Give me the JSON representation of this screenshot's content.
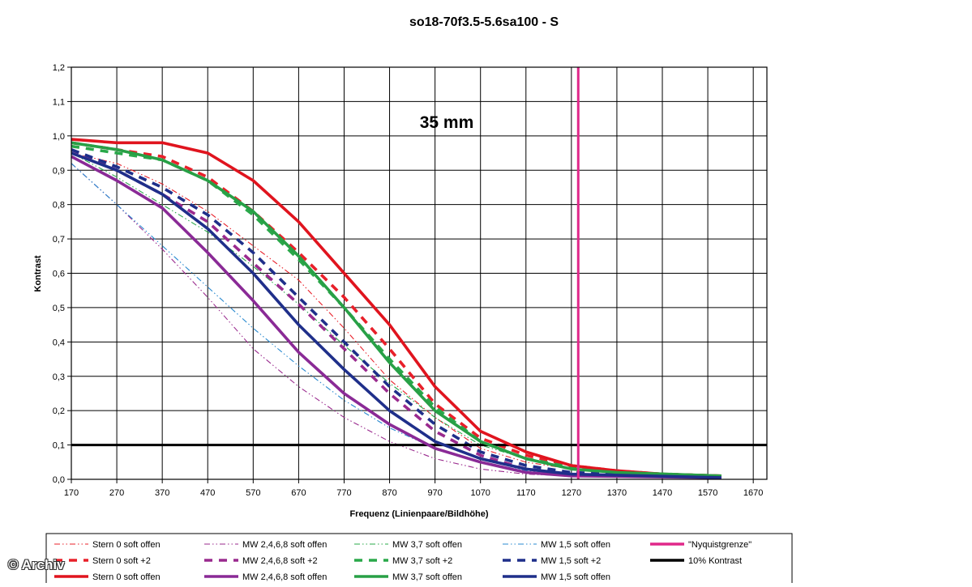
{
  "chart_data": {
    "type": "line",
    "title": "so18-70f3.5-5.6sa100 - S",
    "annotation": "35 mm",
    "xlabel": "Frequenz (Linienpaare/Bildhöhe)",
    "ylabel": "Kontrast",
    "xlim": [
      170,
      1700
    ],
    "ylim": [
      0,
      1.2
    ],
    "x_ticks": [
      "170",
      "270",
      "370",
      "470",
      "570",
      "670",
      "770",
      "870",
      "970",
      "1070",
      "1170",
      "1270",
      "1370",
      "1470",
      "1570",
      "1670"
    ],
    "y_ticks": [
      "0,0",
      "0,1",
      "0,2",
      "0,3",
      "0,4",
      "0,5",
      "0,6",
      "0,7",
      "0,8",
      "0,9",
      "1,0",
      "1,1",
      "1,2"
    ],
    "grid": true,
    "legend_position": "bottom",
    "series": [
      {
        "name": "Stern 0 soft offen",
        "color": "#e8202a",
        "style": "dashdot",
        "points": [
          [
            170,
            0.95
          ],
          [
            270,
            0.92
          ],
          [
            370,
            0.86
          ],
          [
            470,
            0.78
          ],
          [
            570,
            0.68
          ],
          [
            670,
            0.58
          ],
          [
            770,
            0.44
          ],
          [
            870,
            0.29
          ],
          [
            970,
            0.18
          ],
          [
            1070,
            0.09
          ],
          [
            1170,
            0.05
          ],
          [
            1270,
            0.03
          ],
          [
            1370,
            0.02
          ],
          [
            1470,
            0.015
          ],
          [
            1600,
            0.01
          ]
        ]
      },
      {
        "name": "MW 2,4,6,8 soft offen",
        "color": "#9a2a8e",
        "style": "dashdot",
        "points": [
          [
            170,
            0.92
          ],
          [
            270,
            0.8
          ],
          [
            370,
            0.67
          ],
          [
            470,
            0.53
          ],
          [
            570,
            0.38
          ],
          [
            670,
            0.27
          ],
          [
            770,
            0.18
          ],
          [
            870,
            0.11
          ],
          [
            970,
            0.06
          ],
          [
            1070,
            0.03
          ],
          [
            1170,
            0.015
          ],
          [
            1270,
            0.01
          ],
          [
            1600,
            0.005
          ]
        ]
      },
      {
        "name": "MW 3,7 soft offen",
        "color": "#2aa84a",
        "style": "dashdot",
        "points": [
          [
            170,
            0.95
          ],
          [
            270,
            0.88
          ],
          [
            370,
            0.8
          ],
          [
            470,
            0.72
          ],
          [
            570,
            0.62
          ],
          [
            670,
            0.51
          ],
          [
            770,
            0.39
          ],
          [
            870,
            0.28
          ],
          [
            970,
            0.18
          ],
          [
            1070,
            0.1
          ],
          [
            1170,
            0.06
          ],
          [
            1270,
            0.03
          ],
          [
            1370,
            0.02
          ],
          [
            1600,
            0.01
          ]
        ]
      },
      {
        "name": "MW 1,5 soft offen",
        "color": "#2a8ad0",
        "style": "dashdot",
        "points": [
          [
            170,
            0.92
          ],
          [
            270,
            0.8
          ],
          [
            370,
            0.68
          ],
          [
            470,
            0.56
          ],
          [
            570,
            0.44
          ],
          [
            670,
            0.33
          ],
          [
            770,
            0.23
          ],
          [
            870,
            0.15
          ],
          [
            970,
            0.09
          ],
          [
            1070,
            0.05
          ],
          [
            1170,
            0.025
          ],
          [
            1270,
            0.015
          ],
          [
            1600,
            0.005
          ]
        ]
      },
      {
        "name": "\"Nyquistgrenze\"",
        "color": "#e0288a",
        "style": "vline",
        "x": 1285
      },
      {
        "name": "Stern 0 soft +2",
        "color": "#e8202a",
        "style": "dashed",
        "points": [
          [
            170,
            0.98
          ],
          [
            270,
            0.96
          ],
          [
            370,
            0.94
          ],
          [
            470,
            0.88
          ],
          [
            570,
            0.78
          ],
          [
            670,
            0.66
          ],
          [
            770,
            0.53
          ],
          [
            870,
            0.38
          ],
          [
            970,
            0.22
          ],
          [
            1070,
            0.12
          ],
          [
            1170,
            0.07
          ],
          [
            1270,
            0.04
          ],
          [
            1370,
            0.025
          ],
          [
            1470,
            0.015
          ],
          [
            1600,
            0.01
          ]
        ]
      },
      {
        "name": "MW 2,4,6,8 soft +2",
        "color": "#9a2a8e",
        "style": "dashed",
        "points": [
          [
            170,
            0.96
          ],
          [
            270,
            0.9
          ],
          [
            370,
            0.83
          ],
          [
            470,
            0.75
          ],
          [
            570,
            0.63
          ],
          [
            670,
            0.51
          ],
          [
            770,
            0.38
          ],
          [
            870,
            0.25
          ],
          [
            970,
            0.14
          ],
          [
            1070,
            0.07
          ],
          [
            1170,
            0.03
          ],
          [
            1270,
            0.015
          ],
          [
            1600,
            0.005
          ]
        ]
      },
      {
        "name": "MW 3,7 soft +2",
        "color": "#2aa84a",
        "style": "dashed",
        "points": [
          [
            170,
            0.97
          ],
          [
            270,
            0.95
          ],
          [
            370,
            0.93
          ],
          [
            470,
            0.87
          ],
          [
            570,
            0.77
          ],
          [
            670,
            0.64
          ],
          [
            770,
            0.5
          ],
          [
            870,
            0.35
          ],
          [
            970,
            0.21
          ],
          [
            1070,
            0.11
          ],
          [
            1170,
            0.06
          ],
          [
            1270,
            0.035
          ],
          [
            1370,
            0.02
          ],
          [
            1600,
            0.01
          ]
        ]
      },
      {
        "name": "MW 1,5 soft +2",
        "color": "#1f2f8a",
        "style": "dashed",
        "points": [
          [
            170,
            0.96
          ],
          [
            270,
            0.91
          ],
          [
            370,
            0.85
          ],
          [
            470,
            0.77
          ],
          [
            570,
            0.66
          ],
          [
            670,
            0.53
          ],
          [
            770,
            0.4
          ],
          [
            870,
            0.27
          ],
          [
            970,
            0.16
          ],
          [
            1070,
            0.08
          ],
          [
            1170,
            0.04
          ],
          [
            1270,
            0.02
          ],
          [
            1600,
            0.005
          ]
        ]
      },
      {
        "name": "10% Kontrast",
        "color": "#000000",
        "style": "hline",
        "y": 0.1
      },
      {
        "name": "Stern 0 soft offen",
        "color": "#e0141e",
        "style": "solid",
        "points": [
          [
            170,
            0.99
          ],
          [
            270,
            0.98
          ],
          [
            370,
            0.98
          ],
          [
            470,
            0.95
          ],
          [
            570,
            0.87
          ],
          [
            670,
            0.75
          ],
          [
            770,
            0.6
          ],
          [
            870,
            0.45
          ],
          [
            970,
            0.27
          ],
          [
            1070,
            0.14
          ],
          [
            1170,
            0.08
          ],
          [
            1270,
            0.04
          ],
          [
            1370,
            0.025
          ],
          [
            1470,
            0.015
          ],
          [
            1600,
            0.01
          ]
        ]
      },
      {
        "name": "MW 2,4,6,8 soft offen",
        "color": "#8a2a96",
        "style": "solid",
        "points": [
          [
            170,
            0.94
          ],
          [
            270,
            0.87
          ],
          [
            370,
            0.79
          ],
          [
            470,
            0.66
          ],
          [
            570,
            0.52
          ],
          [
            670,
            0.37
          ],
          [
            770,
            0.25
          ],
          [
            870,
            0.16
          ],
          [
            970,
            0.09
          ],
          [
            1070,
            0.05
          ],
          [
            1170,
            0.02
          ],
          [
            1270,
            0.01
          ],
          [
            1600,
            0.005
          ]
        ]
      },
      {
        "name": "MW 3,7 soft offen",
        "color": "#28a046",
        "style": "solid",
        "points": [
          [
            170,
            0.98
          ],
          [
            270,
            0.96
          ],
          [
            370,
            0.93
          ],
          [
            470,
            0.87
          ],
          [
            570,
            0.78
          ],
          [
            670,
            0.65
          ],
          [
            770,
            0.5
          ],
          [
            870,
            0.34
          ],
          [
            970,
            0.2
          ],
          [
            1070,
            0.11
          ],
          [
            1170,
            0.06
          ],
          [
            1270,
            0.03
          ],
          [
            1370,
            0.02
          ],
          [
            1600,
            0.01
          ]
        ]
      },
      {
        "name": "MW 1,5 soft offen",
        "color": "#1f2f8a",
        "style": "solid",
        "points": [
          [
            170,
            0.95
          ],
          [
            270,
            0.9
          ],
          [
            370,
            0.83
          ],
          [
            470,
            0.73
          ],
          [
            570,
            0.6
          ],
          [
            670,
            0.45
          ],
          [
            770,
            0.32
          ],
          [
            870,
            0.2
          ],
          [
            970,
            0.11
          ],
          [
            1070,
            0.06
          ],
          [
            1170,
            0.03
          ],
          [
            1270,
            0.015
          ],
          [
            1600,
            0.005
          ]
        ]
      }
    ]
  },
  "footer": {
    "copyright": "© Archiv"
  }
}
